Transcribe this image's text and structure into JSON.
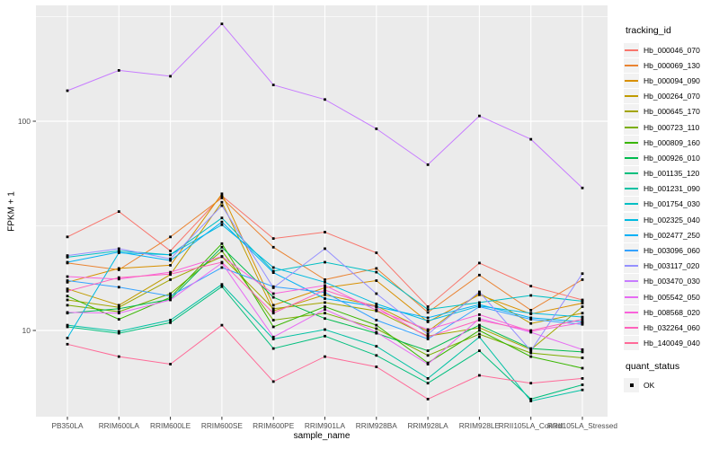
{
  "figure": {
    "xlabel": "sample_name",
    "ylabel": "FPKM + 1",
    "legend_title": "tracking_id",
    "quant_title": "quant_status",
    "quant_ok_label": "OK"
  },
  "colors": {
    "background": "#FFFFFF",
    "panel_bg": "#EBEBEB",
    "grid": "#FFFFFF",
    "axis_text": "#4D4D4D",
    "tick_mark": "#333333",
    "point": "#000000",
    "legend_key_bg": "#F2F2F2"
  },
  "chart_data": {
    "type": "line",
    "title": "",
    "xlabel": "sample_name",
    "ylabel": "FPKM + 1",
    "y_scale": "log10",
    "y_major_ticks": [
      10,
      100
    ],
    "y_major_tick_labels": [
      "10",
      "100"
    ],
    "y_minor_ticks": [
      31.6,
      316
    ],
    "ylim": [
      3.9,
      355
    ],
    "grid": true,
    "legend_position": "right",
    "legend_title": "tracking_id",
    "marker": "black-square",
    "quant_status_legend": {
      "title": "quant_status",
      "items": [
        "OK"
      ]
    },
    "categories": [
      "PB350LA",
      "RRIM600LA",
      "RRIM600LE",
      "RRIM600SE",
      "RRIM600PE",
      "RRIM901LA",
      "RRIM928BA",
      "RRIM928LA",
      "RRIM928LE",
      "RRII105LA_Control",
      "RRII105LA_Stressed"
    ],
    "series": [
      {
        "name": "Hb_000046_070",
        "color": "#F8766D",
        "values": [
          28,
          37,
          24,
          44,
          27.5,
          29.5,
          23.5,
          13,
          21,
          16.3,
          14
        ]
      },
      {
        "name": "Hb_000069_130",
        "color": "#EA8331",
        "values": [
          21,
          19.5,
          28,
          43,
          25,
          17.5,
          19.8,
          12.2,
          18.4,
          12.5,
          17.5
        ]
      },
      {
        "name": "Hb_000094_090",
        "color": "#D89000",
        "values": [
          17,
          19.8,
          20.5,
          45,
          13.2,
          16,
          17.3,
          11,
          14.8,
          12,
          13.5
        ]
      },
      {
        "name": "Hb_000264_070",
        "color": "#C09B00",
        "values": [
          15.8,
          13.2,
          18.5,
          41,
          12.4,
          14.8,
          13.1,
          9.9,
          15.1,
          10.8,
          12.1
        ]
      },
      {
        "name": "Hb_000645_170",
        "color": "#A3A500",
        "values": [
          14,
          12.9,
          17.5,
          22.5,
          12.7,
          13.6,
          12.4,
          9.4,
          10.3,
          8.1,
          13
        ]
      },
      {
        "name": "Hb_000723_110",
        "color": "#7CAE00",
        "values": [
          13.2,
          12.3,
          15,
          24,
          11.2,
          12.1,
          10.2,
          7.6,
          9.6,
          7.8,
          7.4
        ]
      },
      {
        "name": "Hb_000809_160",
        "color": "#39B600",
        "values": [
          14.6,
          11.3,
          14.4,
          26,
          10.4,
          13,
          10.6,
          7,
          10,
          7.5,
          6.6
        ]
      },
      {
        "name": "Hb_000926_010",
        "color": "#00BB4E",
        "values": [
          12.1,
          12.7,
          14.1,
          25,
          14.4,
          11.4,
          9.7,
          8,
          10.6,
          8.2,
          7.9
        ]
      },
      {
        "name": "Hb_001135_120",
        "color": "#00BF7D",
        "values": [
          10.4,
          9.7,
          10.9,
          16.2,
          8.2,
          9.4,
          7.6,
          5.6,
          8,
          4.7,
          5.5
        ]
      },
      {
        "name": "Hb_001231_090",
        "color": "#00C1A3",
        "values": [
          10.6,
          9.9,
          11.2,
          16.6,
          9.1,
          10.1,
          8.4,
          5.9,
          9.3,
          4.6,
          5.2
        ]
      },
      {
        "name": "Hb_001754_030",
        "color": "#00BFC4",
        "values": [
          22.4,
          24,
          23,
          34.5,
          19.2,
          21.2,
          19,
          12.6,
          13.6,
          14.7,
          13.8
        ]
      },
      {
        "name": "Hb_002325_040",
        "color": "#00BAE0",
        "values": [
          9.2,
          23.5,
          23,
          32,
          20,
          17,
          13.4,
          11.1,
          13.1,
          12.1,
          11.6
        ]
      },
      {
        "name": "Hb_002477_250",
        "color": "#00B0F6",
        "values": [
          21.2,
          23.7,
          21.6,
          33,
          18.9,
          14.2,
          13,
          11.5,
          13.3,
          11.5,
          11
        ]
      },
      {
        "name": "Hb_003096_060",
        "color": "#35A2FF",
        "values": [
          17.3,
          16.1,
          14.6,
          20,
          16.2,
          15.2,
          11.2,
          9.1,
          13,
          11.3,
          10.7
        ]
      },
      {
        "name": "Hb_003117_020",
        "color": "#9590FF",
        "values": [
          22.8,
          24.6,
          22,
          39.5,
          16,
          24.6,
          15,
          9.6,
          15.3,
          8,
          18.7
        ]
      },
      {
        "name": "Hb_003470_030",
        "color": "#C77CFF",
        "values": [
          140,
          175,
          164,
          292,
          149,
          127,
          92,
          62,
          106,
          82,
          48
        ]
      },
      {
        "name": "Hb_005542_050",
        "color": "#E76BF3",
        "values": [
          12.2,
          12.1,
          14,
          21,
          9.3,
          12.6,
          9.8,
          6.9,
          11.4,
          9.8,
          8.1
        ]
      },
      {
        "name": "Hb_008568_020",
        "color": "#FA62DB",
        "values": [
          18.1,
          17.6,
          19,
          22.6,
          15,
          16.4,
          12.5,
          10.1,
          11.9,
          9.9,
          10.9
        ]
      },
      {
        "name": "Hb_032264_060",
        "color": "#FF62BC",
        "values": [
          15.4,
          17.9,
          18.6,
          21.2,
          12.1,
          15.6,
          12.9,
          9.3,
          11.2,
          10,
          11.3
        ]
      },
      {
        "name": "Hb_140049_040",
        "color": "#FF6A98",
        "values": [
          8.6,
          7.5,
          6.9,
          10.6,
          5.7,
          7.5,
          6.7,
          4.7,
          6.1,
          5.6,
          5.9
        ]
      }
    ]
  }
}
